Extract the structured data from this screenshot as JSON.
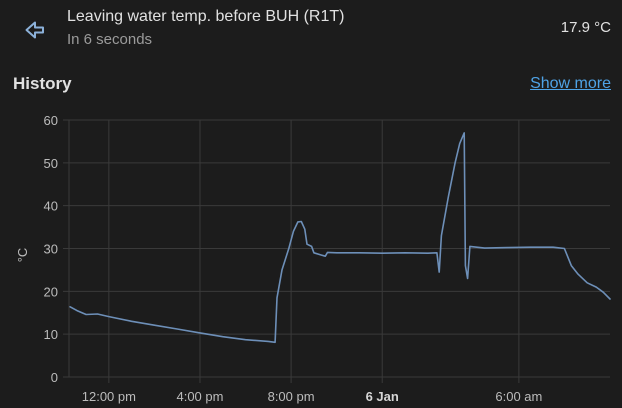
{
  "header": {
    "back_icon": "arrow-left-icon",
    "entity_name": "Leaving water temp. before BUH (R1T)",
    "last_changed": "In 6 seconds",
    "state": "17.9 °C"
  },
  "history": {
    "title": "History",
    "show_more_label": "Show more"
  },
  "colors": {
    "background": "#1c1c1c",
    "line": "#6d8fb8",
    "link": "#4fa3e6",
    "grid": "#3a3a3a"
  },
  "chart_data": {
    "type": "line",
    "ylabel": "°C",
    "ylim": [
      0,
      60
    ],
    "yticks": [
      0,
      10,
      20,
      30,
      40,
      50,
      60
    ],
    "xlim": [
      10.25,
      34
    ],
    "x_unit": "hours since 00:00 on 5 Jan",
    "xticks": [
      {
        "x": 12,
        "label": "12:00 pm",
        "bold": false
      },
      {
        "x": 16,
        "label": "4:00 pm",
        "bold": false
      },
      {
        "x": 20,
        "label": "8:00 pm",
        "bold": false
      },
      {
        "x": 24,
        "label": "6 Jan",
        "bold": true
      },
      {
        "x": 30,
        "label": "6:00 am",
        "bold": false
      }
    ],
    "grid": true,
    "series": [
      {
        "name": "",
        "points": [
          [
            10.3,
            16.4
          ],
          [
            10.6,
            15.5
          ],
          [
            11.0,
            14.6
          ],
          [
            11.5,
            14.7
          ],
          [
            12.0,
            14.1
          ],
          [
            13.0,
            13.0
          ],
          [
            14.0,
            12.1
          ],
          [
            15.0,
            11.2
          ],
          [
            16.0,
            10.3
          ],
          [
            17.0,
            9.4
          ],
          [
            18.0,
            8.7
          ],
          [
            19.0,
            8.3
          ],
          [
            19.3,
            8.1
          ],
          [
            19.38,
            18.5
          ],
          [
            19.6,
            25.0
          ],
          [
            19.9,
            30.0
          ],
          [
            20.1,
            34.0
          ],
          [
            20.3,
            36.2
          ],
          [
            20.45,
            36.3
          ],
          [
            20.6,
            34.5
          ],
          [
            20.7,
            31.0
          ],
          [
            20.9,
            30.5
          ],
          [
            21.0,
            29.0
          ],
          [
            21.3,
            28.5
          ],
          [
            21.5,
            28.2
          ],
          [
            21.6,
            29.1
          ],
          [
            22.0,
            29.0
          ],
          [
            23.0,
            29.0
          ],
          [
            24.0,
            28.9
          ],
          [
            25.0,
            29.0
          ],
          [
            26.0,
            28.9
          ],
          [
            26.4,
            29.0
          ],
          [
            26.5,
            24.5
          ],
          [
            26.6,
            33.0
          ],
          [
            26.9,
            42.0
          ],
          [
            27.2,
            50.0
          ],
          [
            27.4,
            54.5
          ],
          [
            27.6,
            57.0
          ],
          [
            27.65,
            26.0
          ],
          [
            27.75,
            23.0
          ],
          [
            27.85,
            30.5
          ],
          [
            28.5,
            30.1
          ],
          [
            29.5,
            30.2
          ],
          [
            30.5,
            30.3
          ],
          [
            31.5,
            30.3
          ],
          [
            32.0,
            30.0
          ],
          [
            32.3,
            26.0
          ],
          [
            32.6,
            24.0
          ],
          [
            33.0,
            22.0
          ],
          [
            33.4,
            21.0
          ],
          [
            33.7,
            19.8
          ],
          [
            34.0,
            18.2
          ]
        ]
      }
    ]
  }
}
